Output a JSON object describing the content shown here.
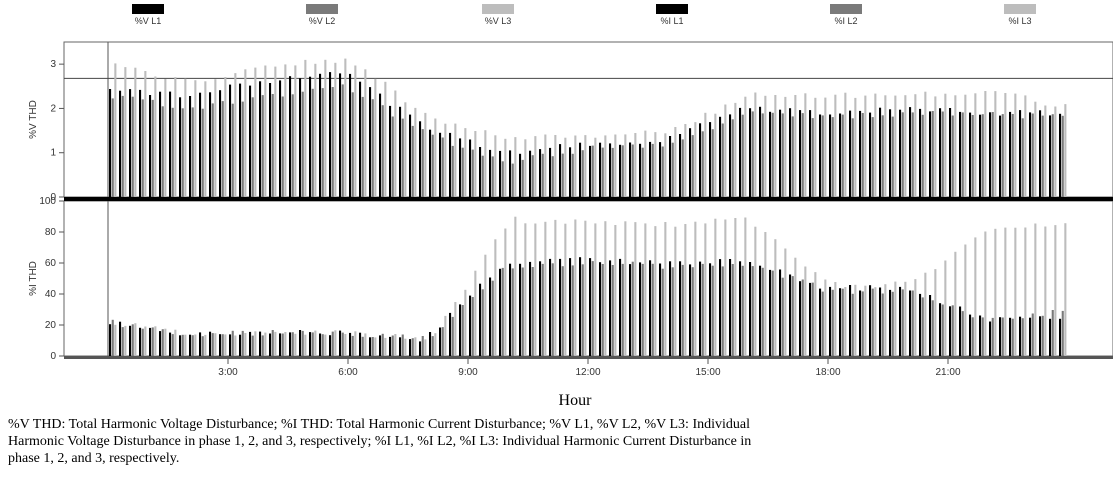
{
  "chart_data": {
    "type": "bar",
    "legend": {
      "placement": "top",
      "entries": [
        {
          "name": "%V L1",
          "color": "#000000"
        },
        {
          "name": "%V L2",
          "color": "#7a7a7a"
        },
        {
          "name": "%V L3",
          "color": "#bdbdbd"
        },
        {
          "name": "%I L1",
          "color": "#000000"
        },
        {
          "name": "%I L2",
          "color": "#7a7a7a"
        },
        {
          "name": "%I L3",
          "color": "#bdbdbd"
        }
      ]
    },
    "x_axis": {
      "label": "Hour",
      "range": [
        0,
        24
      ],
      "ticks": [
        {
          "value": 3,
          "label": "3:00"
        },
        {
          "value": 6,
          "label": "6:00"
        },
        {
          "value": 9,
          "label": "9:00"
        },
        {
          "value": 12,
          "label": "12:00"
        },
        {
          "value": 15,
          "label": "15:00"
        },
        {
          "value": 18,
          "label": "18:00"
        },
        {
          "value": 21,
          "label": "21:00"
        }
      ]
    },
    "panels": [
      {
        "ylabel": "%V THD",
        "ylim": [
          0,
          3.5
        ],
        "yticks": [
          0,
          1,
          2,
          3
        ],
        "reference_line": 2.68,
        "x": [
          0,
          2,
          4,
          6,
          8,
          10,
          12,
          14,
          16,
          18,
          20,
          22,
          23.5
        ],
        "series": [
          {
            "name": "%V L1",
            "values": [
              2.4,
              2.3,
              2.6,
              2.8,
              1.6,
              1.0,
              1.2,
              1.3,
              2.0,
              1.9,
              2.0,
              1.9,
              1.9
            ]
          },
          {
            "name": "%V L2",
            "values": [
              2.3,
              2.0,
              2.3,
              2.5,
              1.4,
              0.8,
              1.1,
              1.2,
              1.9,
              1.8,
              1.9,
              1.9,
              1.8
            ]
          },
          {
            "name": "%V L3",
            "values": [
              3.0,
              2.6,
              3.0,
              3.1,
              1.8,
              1.3,
              1.4,
              1.5,
              2.3,
              2.3,
              2.3,
              2.4,
              2.1
            ]
          }
        ]
      },
      {
        "ylabel": "%I THD",
        "ylim": [
          0,
          100
        ],
        "yticks": [
          0,
          20,
          40,
          60,
          80,
          100
        ],
        "x": [
          0,
          2,
          4,
          6,
          8,
          10,
          12,
          14,
          16,
          18,
          20,
          22,
          23.5
        ],
        "series": [
          {
            "name": "%I L1",
            "values": [
              22,
              14,
              15,
              15,
              11,
              60,
              62,
              60,
              62,
              44,
              44,
              24,
              25
            ]
          },
          {
            "name": "%I L2",
            "values": [
              22,
              14,
              15,
              15,
              11,
              58,
              60,
              58,
              60,
              42,
              42,
              23,
              28
            ]
          },
          {
            "name": "%I L3",
            "values": [
              22,
              14,
              15,
              15,
              11,
              88,
              86,
              85,
              88,
              46,
              46,
              82,
              84
            ]
          }
        ]
      }
    ]
  },
  "caption": "%V THD: Total Harmonic Voltage Disturbance; %I THD: Total Harmonic Current Disturbance; %V L1, %V L2, %V L3: Individual\nHarmonic Voltage Disturbance in phase 1, 2, and 3, respectively; %I L1, %I L2, %I L3: Individual Harmonic Current Disturbance in\nphase 1, 2, and 3, respectively."
}
